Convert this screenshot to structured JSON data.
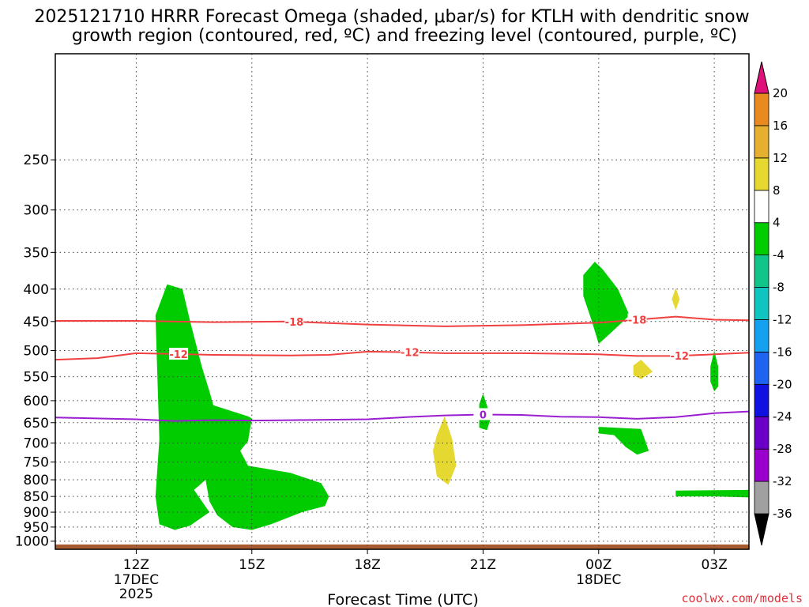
{
  "chart_data": {
    "type": "time-height cross section",
    "title_line1": "2025121710 HRRR Forecast Omega (shaded, μbar/s) for KTLH with dendritic snow",
    "title_line2": "growth region (contoured, red, ºC) and freezing level (contoured, purple, ºC)",
    "xlabel": "Forecast Time (UTC)",
    "credit": "coolwx.com/models",
    "x_hours_range": [
      9.9,
      27.9
    ],
    "y_pressure_range_hPa": [
      1030,
      170
    ],
    "y_ticks": [
      250,
      300,
      350,
      400,
      450,
      500,
      550,
      600,
      650,
      700,
      750,
      800,
      850,
      900,
      950,
      1000
    ],
    "x_ticks": [
      {
        "hour": 12,
        "label": "12Z",
        "sub1": "17DEC",
        "sub2": "2025"
      },
      {
        "hour": 15,
        "label": "15Z",
        "sub1": "",
        "sub2": ""
      },
      {
        "hour": 18,
        "label": "18Z",
        "sub1": "",
        "sub2": ""
      },
      {
        "hour": 21,
        "label": "21Z",
        "sub1": "",
        "sub2": ""
      },
      {
        "hour": 24,
        "label": "00Z",
        "sub1": "18DEC",
        "sub2": ""
      },
      {
        "hour": 27,
        "label": "03Z",
        "sub1": "",
        "sub2": ""
      }
    ],
    "colorbar": {
      "bounds": [
        -36,
        -32,
        -28,
        -24,
        -20,
        -16,
        -12,
        -8,
        -4,
        4,
        8,
        12,
        16,
        20
      ],
      "labels": [
        "-36",
        "-32",
        "-28",
        "-24",
        "-20",
        "-16",
        "-12",
        "-8",
        "-4",
        "4",
        "8",
        "12",
        "16",
        "20"
      ],
      "colors": [
        "#000000",
        "#a0a0a0",
        "#9900cc",
        "#6a00c8",
        "#1010e0",
        "#1e64f0",
        "#15a0f0",
        "#10c4c0",
        "#10c48a",
        "#00cc00",
        "#ffffff",
        "#e5d830",
        "#e5b030",
        "#e88a20",
        "#f04a3a",
        "#e0107a"
      ]
    },
    "contours": [
      {
        "name": "dgz-minus-18",
        "label": "-18",
        "color": "#f04040",
        "label_at_hours": [
          16.1,
          25.0
        ],
        "points": [
          [
            9.9,
            449
          ],
          [
            12,
            449
          ],
          [
            14,
            451
          ],
          [
            16,
            450
          ],
          [
            18,
            455
          ],
          [
            20,
            458
          ],
          [
            22,
            456
          ],
          [
            24,
            452
          ],
          [
            25,
            447
          ],
          [
            26,
            442
          ],
          [
            27,
            447
          ],
          [
            27.9,
            448
          ]
        ]
      },
      {
        "name": "dgz-minus-12",
        "label": "-12",
        "color": "#f04040",
        "label_at_hours": [
          13.1,
          19.1,
          26.1
        ],
        "points": [
          [
            9.9,
            517
          ],
          [
            11,
            514
          ],
          [
            12,
            505
          ],
          [
            14,
            508
          ],
          [
            16,
            509
          ],
          [
            17,
            508
          ],
          [
            18,
            502
          ],
          [
            19,
            503
          ],
          [
            20,
            505
          ],
          [
            22,
            505
          ],
          [
            24,
            507
          ],
          [
            25,
            510
          ],
          [
            26,
            510
          ],
          [
            27,
            507
          ],
          [
            27.9,
            504
          ]
        ]
      },
      {
        "name": "freezing-level-0",
        "label": "0",
        "color": "#9a1ed0",
        "label_at_hours": [
          21.0
        ],
        "points": [
          [
            9.9,
            638
          ],
          [
            12,
            642
          ],
          [
            13,
            646
          ],
          [
            14,
            644
          ],
          [
            15,
            645
          ],
          [
            16,
            644
          ],
          [
            18,
            642
          ],
          [
            19,
            637
          ],
          [
            20,
            633
          ],
          [
            21,
            631
          ],
          [
            22,
            632
          ],
          [
            23,
            636
          ],
          [
            24,
            637
          ],
          [
            25,
            641
          ],
          [
            26,
            637
          ],
          [
            27,
            628
          ],
          [
            27.9,
            624
          ]
        ]
      }
    ],
    "omega_regions": [
      {
        "name": "omega-green-main-column",
        "range": "-8 to -4",
        "color": "#00cc00",
        "points": [
          [
            12.6,
            940
          ],
          [
            12.5,
            850
          ],
          [
            12.6,
            690
          ],
          [
            12.5,
            440
          ],
          [
            12.8,
            393
          ],
          [
            13.2,
            400
          ],
          [
            13.4,
            450
          ],
          [
            13.7,
            530
          ],
          [
            13.9,
            580
          ],
          [
            14.0,
            610
          ],
          [
            14.9,
            635
          ],
          [
            15.0,
            640
          ],
          [
            14.9,
            695
          ],
          [
            14.7,
            720
          ],
          [
            14.9,
            760
          ],
          [
            16.0,
            780
          ],
          [
            16.8,
            810
          ],
          [
            17.0,
            850
          ],
          [
            16.9,
            880
          ],
          [
            16.3,
            900
          ],
          [
            15.5,
            940
          ],
          [
            15.0,
            960
          ],
          [
            14.5,
            950
          ],
          [
            14.1,
            910
          ],
          [
            13.9,
            865
          ],
          [
            13.8,
            800
          ],
          [
            13.5,
            830
          ],
          [
            13.9,
            900
          ],
          [
            13.4,
            945
          ],
          [
            13.0,
            960
          ],
          [
            12.6,
            940
          ]
        ]
      },
      {
        "name": "omega-green-00z-upper",
        "range": "-8 to -4",
        "color": "#00cc00",
        "points": [
          [
            23.6,
            380
          ],
          [
            23.9,
            362
          ],
          [
            24.1,
            372
          ],
          [
            24.5,
            400
          ],
          [
            24.8,
            440
          ],
          [
            24.3,
            470
          ],
          [
            24.0,
            488
          ],
          [
            23.8,
            445
          ],
          [
            23.6,
            410
          ],
          [
            23.6,
            380
          ]
        ]
      },
      {
        "name": "omega-green-21z",
        "range": "-8 to -4",
        "color": "#00cc00",
        "points": [
          [
            21.0,
            585
          ],
          [
            21.1,
            610
          ],
          [
            21.2,
            640
          ],
          [
            21.1,
            668
          ],
          [
            20.9,
            662
          ],
          [
            20.9,
            630
          ],
          [
            20.9,
            608
          ],
          [
            21.0,
            585
          ]
        ]
      },
      {
        "name": "omega-green-01z",
        "range": "-8 to -4",
        "color": "#00cc00",
        "points": [
          [
            24.0,
            660
          ],
          [
            25.1,
            665
          ],
          [
            25.3,
            720
          ],
          [
            25.0,
            730
          ],
          [
            24.7,
            710
          ],
          [
            24.4,
            680
          ],
          [
            24.0,
            676
          ],
          [
            24.0,
            660
          ]
        ]
      },
      {
        "name": "omega-green-03z",
        "range": "-8 to -4",
        "color": "#00cc00",
        "points": [
          [
            27.0,
            500
          ],
          [
            27.1,
            530
          ],
          [
            27.1,
            570
          ],
          [
            27.0,
            580
          ],
          [
            26.9,
            560
          ],
          [
            26.9,
            530
          ],
          [
            27.0,
            500
          ]
        ]
      },
      {
        "name": "omega-green-late-low",
        "range": "-8 to -4",
        "color": "#00cc00",
        "points": [
          [
            26.0,
            832
          ],
          [
            27.9,
            830
          ],
          [
            27.9,
            853
          ],
          [
            27.0,
            850
          ],
          [
            26.0,
            850
          ],
          [
            26.0,
            832
          ]
        ]
      },
      {
        "name": "omega-yellow-20z",
        "range": "4 to 8",
        "color": "#e5d830",
        "points": [
          [
            20.0,
            635
          ],
          [
            20.2,
            690
          ],
          [
            20.3,
            760
          ],
          [
            20.1,
            815
          ],
          [
            19.8,
            790
          ],
          [
            19.7,
            720
          ],
          [
            19.8,
            680
          ],
          [
            20.0,
            635
          ]
        ]
      },
      {
        "name": "omega-yellow-01z",
        "range": "4 to 8",
        "color": "#e5d830",
        "points": [
          [
            25.1,
            517
          ],
          [
            25.4,
            540
          ],
          [
            25.1,
            555
          ],
          [
            24.9,
            547
          ],
          [
            24.9,
            528
          ],
          [
            25.1,
            517
          ]
        ]
      },
      {
        "name": "omega-yellow-02z",
        "range": "4 to 8",
        "color": "#e5d830",
        "points": [
          [
            26.0,
            398
          ],
          [
            26.1,
            415
          ],
          [
            26.0,
            432
          ],
          [
            25.9,
            415
          ],
          [
            26.0,
            398
          ]
        ]
      }
    ],
    "surface_band": {
      "name": "below-ground",
      "color": "#a85a30",
      "from_hPa": 1012,
      "to_hPa": 1030
    }
  }
}
